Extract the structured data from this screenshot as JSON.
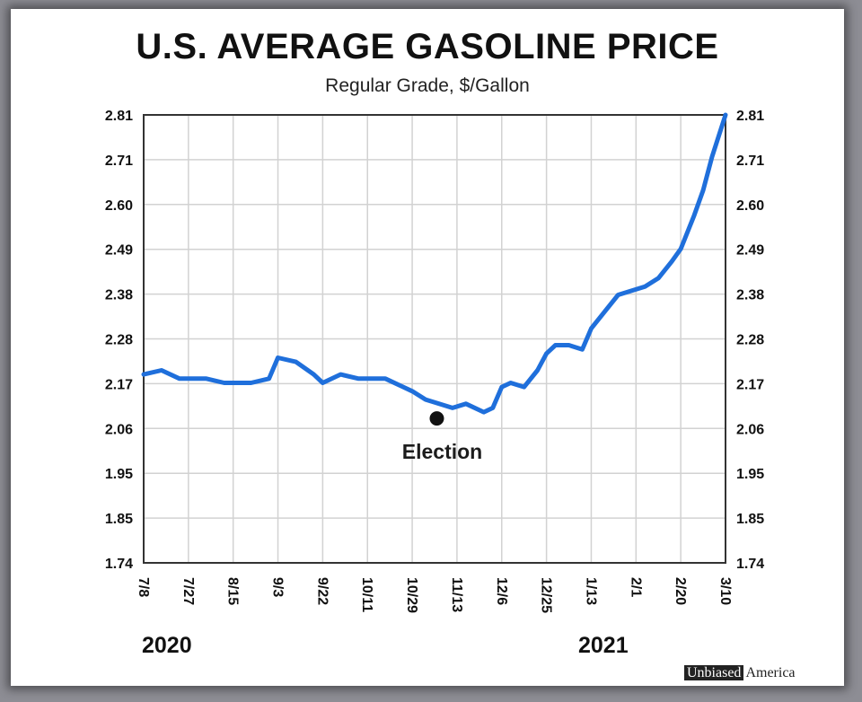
{
  "chart_data": {
    "type": "line",
    "title": "U.S. AVERAGE GASOLINE PRICE",
    "subtitle": "Regular Grade, $/Gallon",
    "xlabel": "",
    "ylabel": "",
    "y_ticks": [
      "2.81",
      "2.71",
      "2.60",
      "2.49",
      "2.38",
      "2.28",
      "2.17",
      "2.06",
      "1.95",
      "1.85",
      "1.74"
    ],
    "ylim": [
      1.74,
      2.81
    ],
    "x_ticks": [
      "7/8",
      "7/27",
      "8/15",
      "9/3",
      "9/22",
      "10/11",
      "10/29",
      "11/13",
      "12/6",
      "12/25",
      "1/13",
      "2/1",
      "2/20",
      "3/10"
    ],
    "years": [
      "2020",
      "2021"
    ],
    "grid": true,
    "series": [
      {
        "name": "Regular Grade",
        "color": "#1f6fdb",
        "x": [
          0,
          0.4,
          0.8,
          1.0,
          1.4,
          1.8,
          2.0,
          2.4,
          2.8,
          3.0,
          3.4,
          3.8,
          4.0,
          4.4,
          4.8,
          5.0,
          5.4,
          5.8,
          6.0,
          6.3,
          6.6,
          6.9,
          7.2,
          7.6,
          7.8,
          8.0,
          8.2,
          8.5,
          8.8,
          9.0,
          9.2,
          9.5,
          9.8,
          10.0,
          10.3,
          10.6,
          10.9,
          11.2,
          11.5,
          11.8,
          12.0,
          12.3,
          12.5,
          12.7,
          13.0
        ],
        "values": [
          2.19,
          2.2,
          2.18,
          2.18,
          2.18,
          2.17,
          2.17,
          2.17,
          2.18,
          2.23,
          2.22,
          2.19,
          2.17,
          2.19,
          2.18,
          2.18,
          2.18,
          2.16,
          2.15,
          2.13,
          2.12,
          2.11,
          2.12,
          2.1,
          2.11,
          2.16,
          2.17,
          2.16,
          2.2,
          2.24,
          2.26,
          2.26,
          2.25,
          2.3,
          2.34,
          2.38,
          2.39,
          2.4,
          2.42,
          2.46,
          2.49,
          2.57,
          2.63,
          2.71,
          2.81
        ]
      }
    ],
    "annotations": [
      {
        "label": "Election",
        "x": 6.55,
        "y": 2.085
      }
    ]
  },
  "watermark": {
    "part1": "Unbiased",
    "part2": "America"
  }
}
